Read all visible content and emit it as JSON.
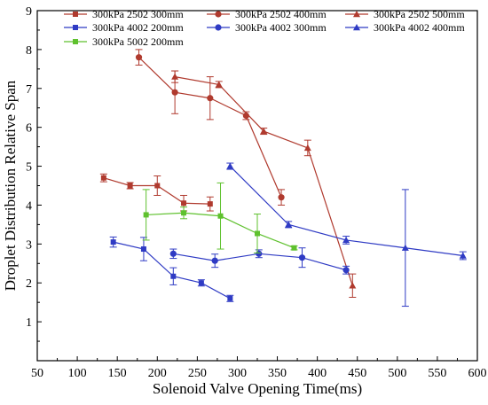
{
  "chart_data": {
    "type": "line",
    "title": "",
    "xlabel": "Solenoid Valve Opening Time(ms)",
    "ylabel": "Droplet Distribution Relative Span",
    "xlim": [
      50,
      600
    ],
    "ylim": [
      0,
      9
    ],
    "xticks": [
      "50",
      "100",
      "150",
      "200",
      "250",
      "300",
      "350",
      "400",
      "450",
      "500",
      "550",
      "600"
    ],
    "yticks": [
      "1",
      "2",
      "3",
      "4",
      "5",
      "6",
      "7",
      "8",
      "9"
    ],
    "grid": false,
    "legend_position": "top-left",
    "series": [
      {
        "name": "300kPa 2502 300mm",
        "color": "#b03a2e",
        "marker": "square",
        "points": [
          {
            "x": 133,
            "y": 4.7,
            "err": 0.1
          },
          {
            "x": 166,
            "y": 4.5,
            "err": 0.08
          },
          {
            "x": 200,
            "y": 4.5,
            "err": 0.25
          },
          {
            "x": 233,
            "y": 4.05,
            "err": 0.2
          },
          {
            "x": 266,
            "y": 4.03,
            "err": 0.18
          }
        ]
      },
      {
        "name": "300kPa 2502 400mm",
        "color": "#b03a2e",
        "marker": "circle",
        "points": [
          {
            "x": 177,
            "y": 7.8,
            "err": 0.2
          },
          {
            "x": 222,
            "y": 6.9,
            "err": 0.55
          },
          {
            "x": 266,
            "y": 6.75,
            "err": 0.55
          },
          {
            "x": 311,
            "y": 6.3,
            "err": 0.1
          },
          {
            "x": 355,
            "y": 4.2,
            "err": 0.2
          }
        ]
      },
      {
        "name": "300kPa 2502 500mm",
        "color": "#b03a2e",
        "marker": "triangle",
        "points": [
          {
            "x": 222,
            "y": 7.3,
            "err": 0.15
          },
          {
            "x": 277,
            "y": 7.1,
            "err": 0.08
          },
          {
            "x": 333,
            "y": 5.9,
            "err": 0.08
          },
          {
            "x": 388,
            "y": 5.47,
            "err": 0.2
          },
          {
            "x": 444,
            "y": 1.93,
            "err": 0.3
          }
        ]
      },
      {
        "name": "300kPa 4002 200mm",
        "color": "#2f3bc4",
        "marker": "square",
        "points": [
          {
            "x": 145,
            "y": 3.05,
            "err": 0.13
          },
          {
            "x": 183,
            "y": 2.87,
            "err": 0.3
          },
          {
            "x": 220,
            "y": 2.17,
            "err": 0.22
          },
          {
            "x": 255,
            "y": 2.0,
            "err": 0.08
          },
          {
            "x": 291,
            "y": 1.6,
            "err": 0.08
          }
        ]
      },
      {
        "name": "300kPa 4002 300mm",
        "color": "#2f3bc4",
        "marker": "circle",
        "points": [
          {
            "x": 220,
            "y": 2.75,
            "err": 0.12
          },
          {
            "x": 272,
            "y": 2.57,
            "err": 0.17
          },
          {
            "x": 327,
            "y": 2.75,
            "err": 0.1
          },
          {
            "x": 381,
            "y": 2.65,
            "err": 0.25
          },
          {
            "x": 436,
            "y": 2.33,
            "err": 0.1
          }
        ]
      },
      {
        "name": "300kPa 4002 400mm",
        "color": "#2f3bc4",
        "marker": "triangle",
        "points": [
          {
            "x": 291,
            "y": 5.0,
            "err": 0.08
          },
          {
            "x": 364,
            "y": 3.5,
            "err": 0.08
          },
          {
            "x": 436,
            "y": 3.1,
            "err": 0.1
          },
          {
            "x": 510,
            "y": 2.9,
            "err": 1.5
          },
          {
            "x": 582,
            "y": 2.7,
            "err": 0.1
          }
        ]
      },
      {
        "name": "300kPa 5002 200mm",
        "color": "#5fc12e",
        "marker": "square",
        "points": [
          {
            "x": 186,
            "y": 3.75,
            "err": 0.65
          },
          {
            "x": 233,
            "y": 3.8,
            "err": 0.15
          },
          {
            "x": 279,
            "y": 3.72,
            "err": 0.85
          },
          {
            "x": 325,
            "y": 3.27,
            "err": 0.5
          },
          {
            "x": 371,
            "y": 2.9,
            "err": 0.05
          }
        ]
      }
    ]
  }
}
